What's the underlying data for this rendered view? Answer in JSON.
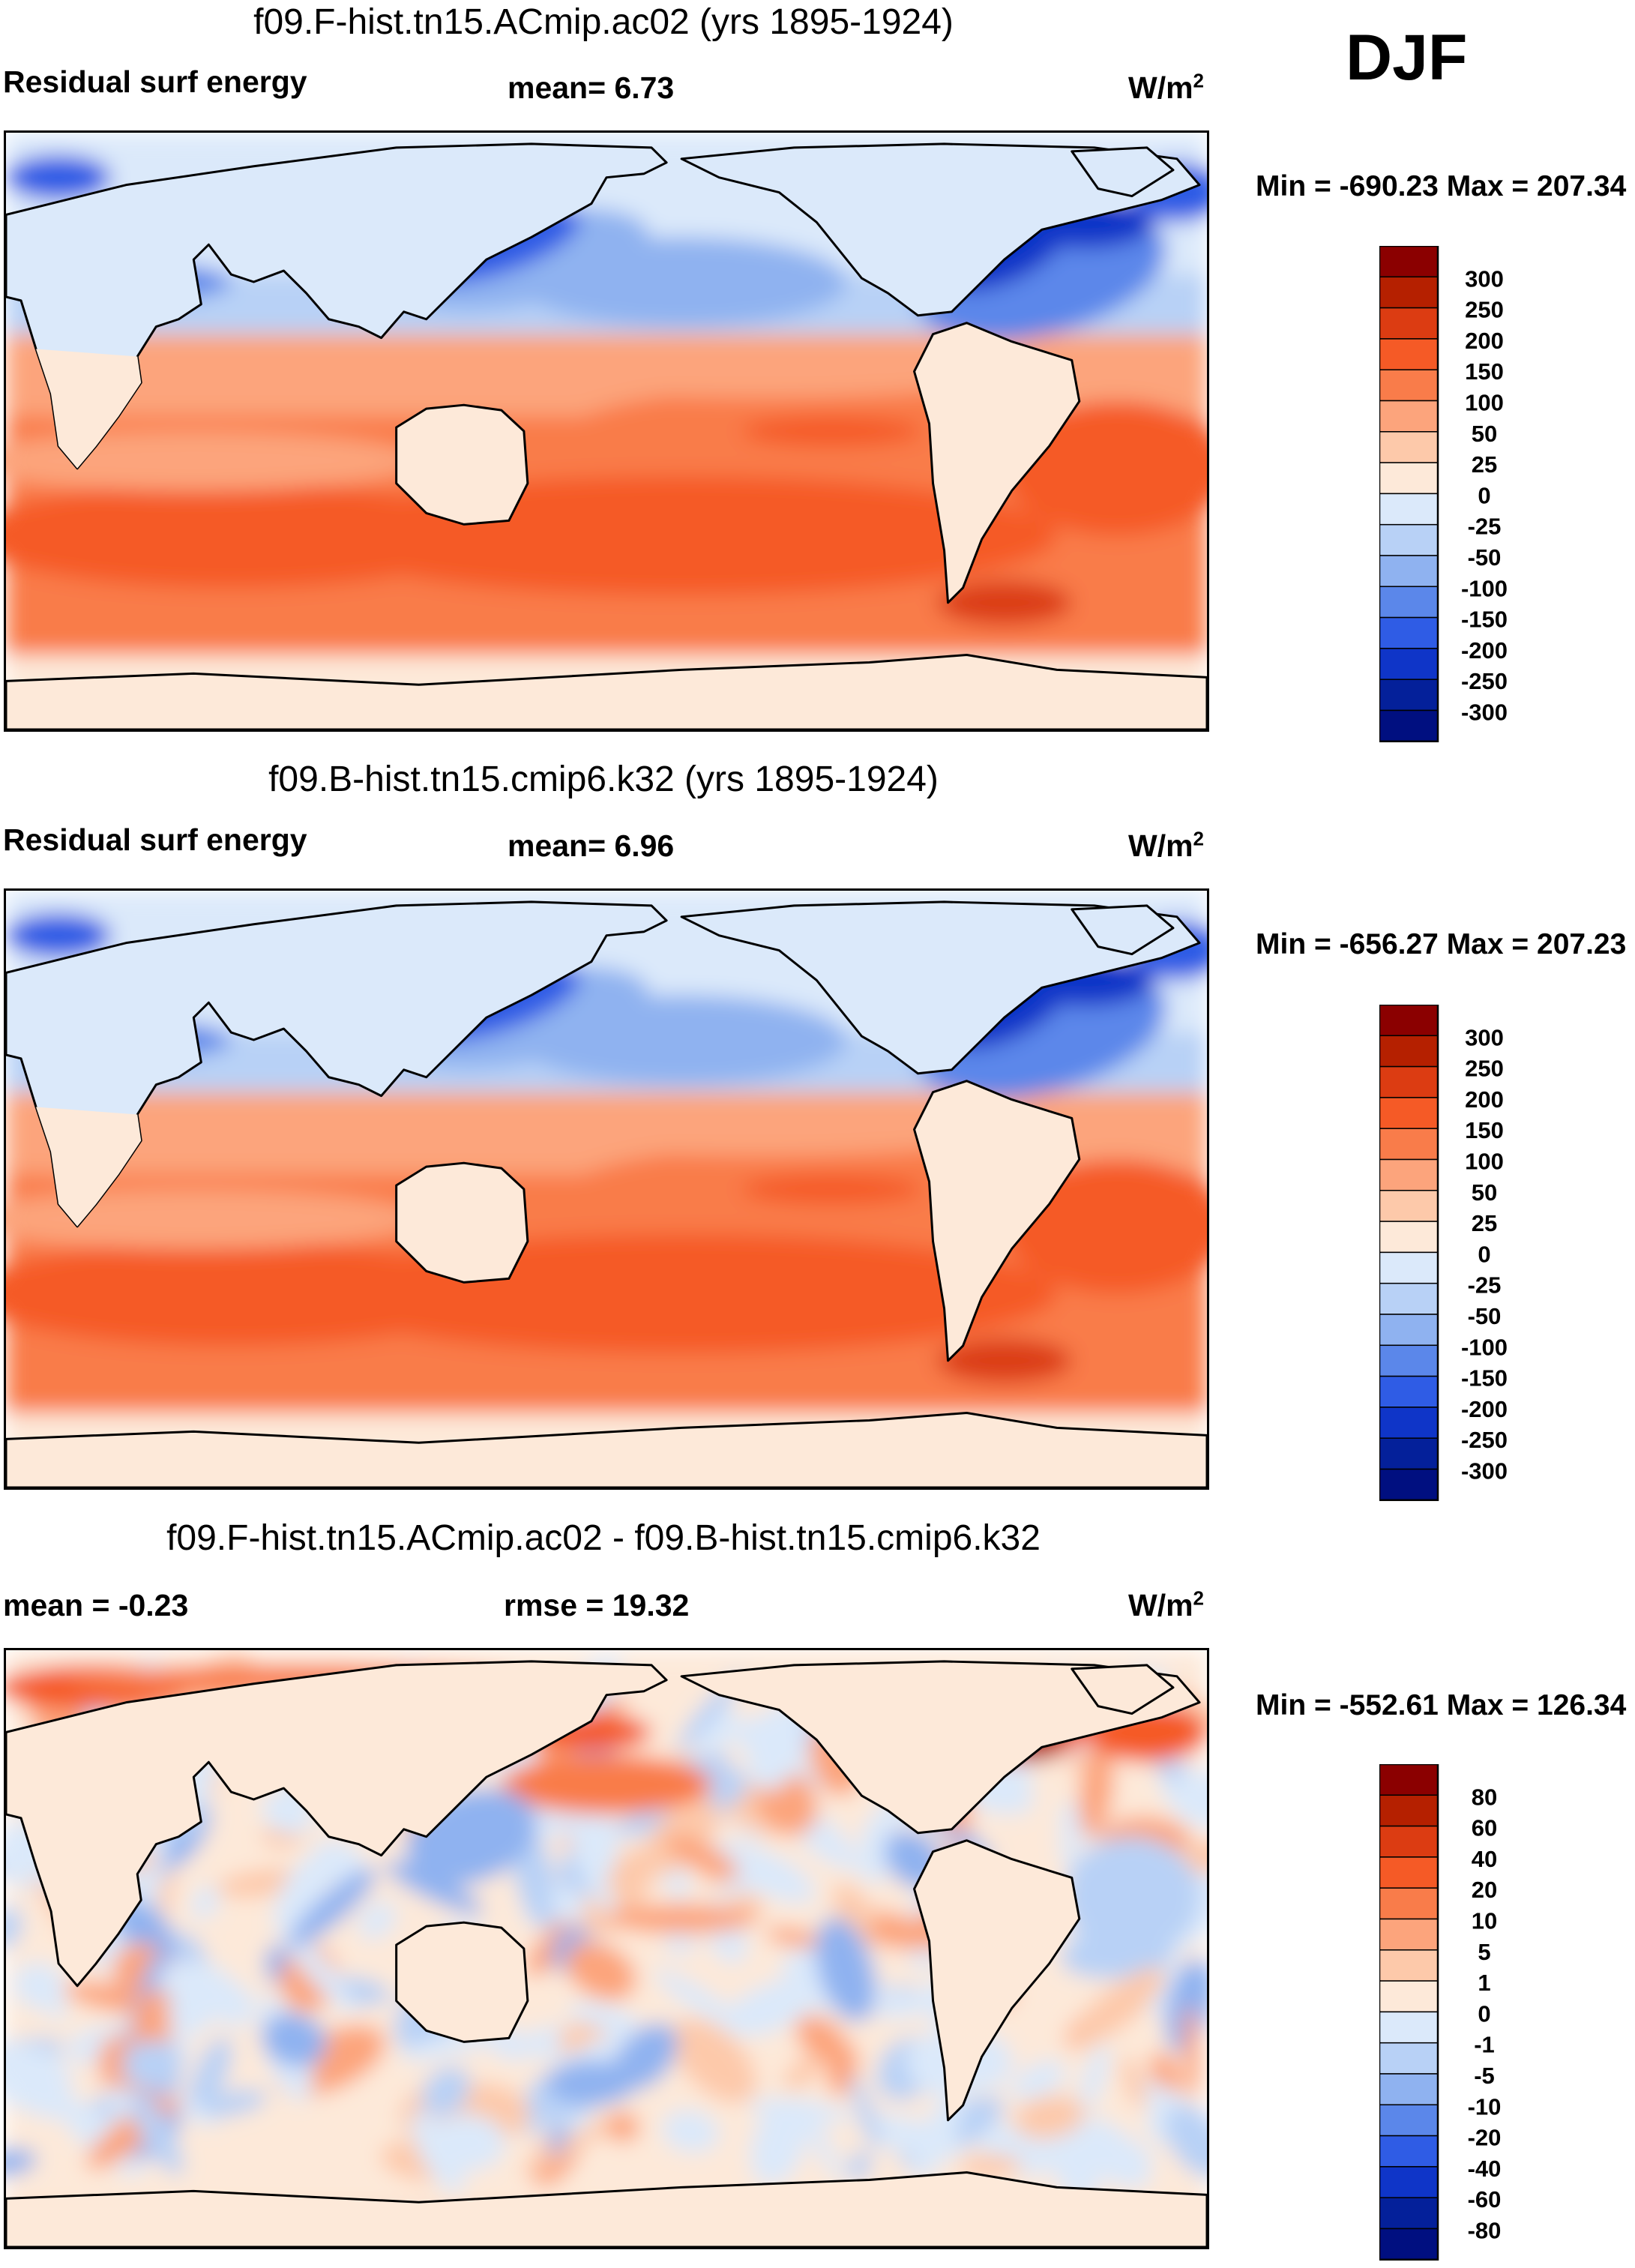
{
  "season": "DJF",
  "panels": [
    {
      "title": "f09.F-hist.tn15.ACmip.ac02 (yrs 1895-1924)",
      "left_label": "Residual surf energy",
      "center_label": "mean=   6.73",
      "units": "W/m",
      "units_sup": "2",
      "minmax": "Min = -690.23 Max = 207.34",
      "colorbar_labels": [
        "300",
        "250",
        "200",
        "150",
        "100",
        "50",
        "25",
        "0",
        "-25",
        "-50",
        "-100",
        "-150",
        "-200",
        "-250",
        "-300"
      ],
      "colors": [
        "#8b0000",
        "#b52000",
        "#dc3c12",
        "#f55a26",
        "#f97c4a",
        "#fca47c",
        "#fdc9aa",
        "#fde9d9",
        "#dbe9fa",
        "#b8d1f6",
        "#8fb2f0",
        "#5b87ea",
        "#2f5ce5",
        "#0f35c8",
        "#04209a",
        "#000f80"
      ],
      "ocean_scheme": "full"
    },
    {
      "title": "f09.B-hist.tn15.cmip6.k32 (yrs 1895-1924)",
      "left_label": "Residual surf energy",
      "center_label": "mean=   6.96",
      "units": "W/m",
      "units_sup": "2",
      "minmax": "Min = -656.27 Max = 207.23",
      "colorbar_labels": [
        "300",
        "250",
        "200",
        "150",
        "100",
        "50",
        "25",
        "0",
        "-25",
        "-50",
        "-100",
        "-150",
        "-200",
        "-250",
        "-300"
      ],
      "colors": [
        "#8b0000",
        "#b52000",
        "#dc3c12",
        "#f55a26",
        "#f97c4a",
        "#fca47c",
        "#fdc9aa",
        "#fde9d9",
        "#dbe9fa",
        "#b8d1f6",
        "#8fb2f0",
        "#5b87ea",
        "#2f5ce5",
        "#0f35c8",
        "#04209a",
        "#000f80"
      ],
      "ocean_scheme": "full"
    },
    {
      "title": "f09.F-hist.tn15.ACmip.ac02 - f09.B-hist.tn15.cmip6.k32",
      "left_label": "mean =  -0.23",
      "center_label": "rmse =  19.32",
      "units": "W/m",
      "units_sup": "2",
      "minmax": "Min = -552.61 Max = 126.34",
      "colorbar_labels": [
        "80",
        "60",
        "40",
        "20",
        "10",
        "5",
        "1",
        "0",
        "-1",
        "-5",
        "-10",
        "-20",
        "-40",
        "-60",
        "-80"
      ],
      "colors": [
        "#8b0000",
        "#b52000",
        "#dc3c12",
        "#f55a26",
        "#f97c4a",
        "#fca47c",
        "#fdc9aa",
        "#fde9d9",
        "#dbe9fa",
        "#b8d1f6",
        "#8fb2f0",
        "#5b87ea",
        "#2f5ce5",
        "#0f35c8",
        "#04209a",
        "#000f80"
      ],
      "ocean_scheme": "diff"
    }
  ],
  "chart_data": [
    {
      "type": "heatmap",
      "title": "f09.F-hist.tn15.ACmip.ac02 (yrs 1895-1924)",
      "variable": "Residual surf energy",
      "season": "DJF",
      "units": "W/m2",
      "mean": 6.73,
      "min": -690.23,
      "max": 207.34,
      "contour_levels": [
        -300,
        -250,
        -200,
        -150,
        -100,
        -50,
        -25,
        0,
        25,
        50,
        100,
        150,
        200,
        250,
        300
      ]
    },
    {
      "type": "heatmap",
      "title": "f09.B-hist.tn15.cmip6.k32 (yrs 1895-1924)",
      "variable": "Residual surf energy",
      "season": "DJF",
      "units": "W/m2",
      "mean": 6.96,
      "min": -656.27,
      "max": 207.23,
      "contour_levels": [
        -300,
        -250,
        -200,
        -150,
        -100,
        -50,
        -25,
        0,
        25,
        50,
        100,
        150,
        200,
        250,
        300
      ]
    },
    {
      "type": "heatmap",
      "title": "f09.F-hist.tn15.ACmip.ac02 - f09.B-hist.tn15.cmip6.k32",
      "variable": "difference",
      "season": "DJF",
      "units": "W/m2",
      "mean": -0.23,
      "rmse": 19.32,
      "min": -552.61,
      "max": 126.34,
      "contour_levels": [
        -80,
        -60,
        -40,
        -20,
        -10,
        -5,
        -1,
        0,
        1,
        5,
        10,
        20,
        40,
        60,
        80
      ]
    }
  ]
}
